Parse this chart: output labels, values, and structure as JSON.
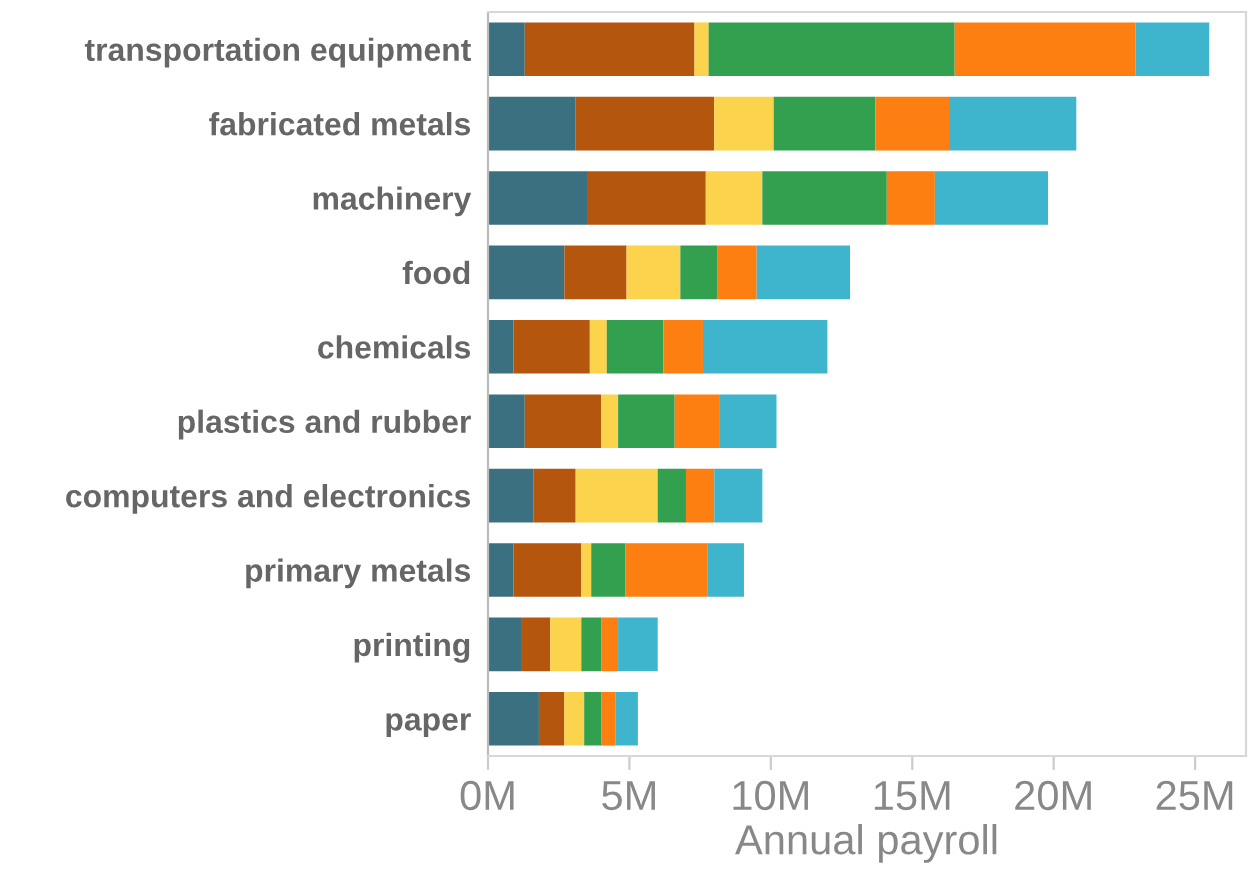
{
  "chart_data": {
    "type": "bar",
    "orientation": "horizontal",
    "stacked": true,
    "xlabel": "Annual payroll",
    "categories": [
      "transportation equipment",
      "fabricated metals",
      "machinery",
      "food",
      "chemicals",
      "plastics and rubber",
      "computers and electronics",
      "primary metals",
      "printing",
      "paper"
    ],
    "series": [
      {
        "color": "#3b7080",
        "values": [
          1.3,
          3.1,
          3.5,
          2.7,
          0.9,
          1.3,
          1.6,
          0.9,
          1.2,
          1.8
        ]
      },
      {
        "color": "#b5560f",
        "values": [
          6.0,
          4.9,
          4.2,
          2.2,
          2.7,
          2.7,
          1.5,
          2.4,
          1.0,
          0.9
        ]
      },
      {
        "color": "#fcd34d",
        "values": [
          0.5,
          2.1,
          2.0,
          1.9,
          0.6,
          0.6,
          2.9,
          0.35,
          1.1,
          0.7
        ]
      },
      {
        "color": "#33a04f",
        "values": [
          8.7,
          3.6,
          4.4,
          1.3,
          2.0,
          2.0,
          1.0,
          1.2,
          0.7,
          0.6
        ]
      },
      {
        "color": "#fd7f12",
        "values": [
          6.4,
          2.6,
          1.7,
          1.4,
          1.4,
          1.6,
          1.0,
          2.9,
          0.6,
          0.5
        ]
      },
      {
        "color": "#3eb5cc",
        "values": [
          2.6,
          4.5,
          4.0,
          3.3,
          4.4,
          2.0,
          1.7,
          1.3,
          1.4,
          0.8
        ]
      }
    ],
    "xlim": [
      0,
      26.8
    ],
    "xticks": [
      {
        "value": 0,
        "label": "0M"
      },
      {
        "value": 5,
        "label": "5M"
      },
      {
        "value": 10,
        "label": "10M"
      },
      {
        "value": 15,
        "label": "15M"
      },
      {
        "value": 20,
        "label": "20M"
      },
      {
        "value": 25,
        "label": "25M"
      }
    ],
    "grid": false
  }
}
